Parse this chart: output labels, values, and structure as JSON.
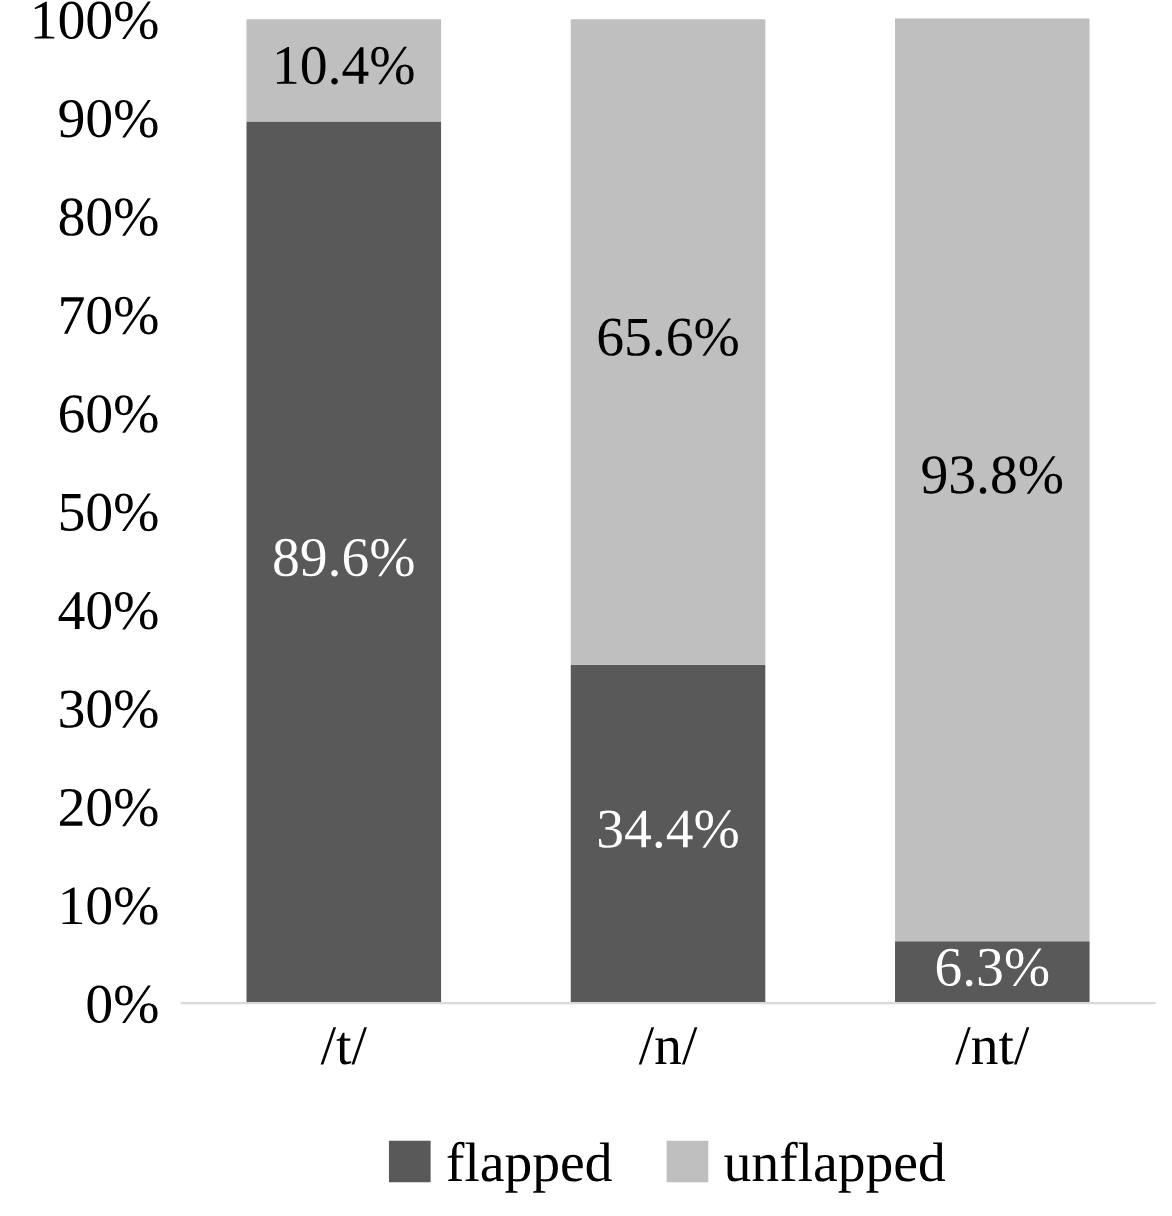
{
  "chart_data": {
    "type": "bar",
    "stacked": true,
    "categories": [
      "/t/",
      "/n/",
      "/nt/"
    ],
    "series": [
      {
        "name": "flapped",
        "color": "#595959",
        "values": [
          89.6,
          34.4,
          6.3
        ],
        "value_labels": [
          "89.6%",
          "34.4%",
          "6.3%"
        ]
      },
      {
        "name": "unflapped",
        "color": "#bfbfbf",
        "values": [
          10.4,
          65.6,
          93.8
        ],
        "value_labels": [
          "10.4%",
          "65.6%",
          "93.8%"
        ]
      }
    ],
    "ylim": [
      0,
      100.1
    ],
    "yticks": [
      {
        "value": 0,
        "label": "0%"
      },
      {
        "value": 10,
        "label": "10%"
      },
      {
        "value": 20,
        "label": "20%"
      },
      {
        "value": 30,
        "label": "30%"
      },
      {
        "value": 40,
        "label": "40%"
      },
      {
        "value": 50,
        "label": "50%"
      },
      {
        "value": 60,
        "label": "60%"
      },
      {
        "value": 70,
        "label": "70%"
      },
      {
        "value": 80,
        "label": "80%"
      },
      {
        "value": 90,
        "label": "90%"
      },
      {
        "value": 100,
        "label": "100%"
      }
    ],
    "grid": false,
    "legend": "bottom"
  }
}
